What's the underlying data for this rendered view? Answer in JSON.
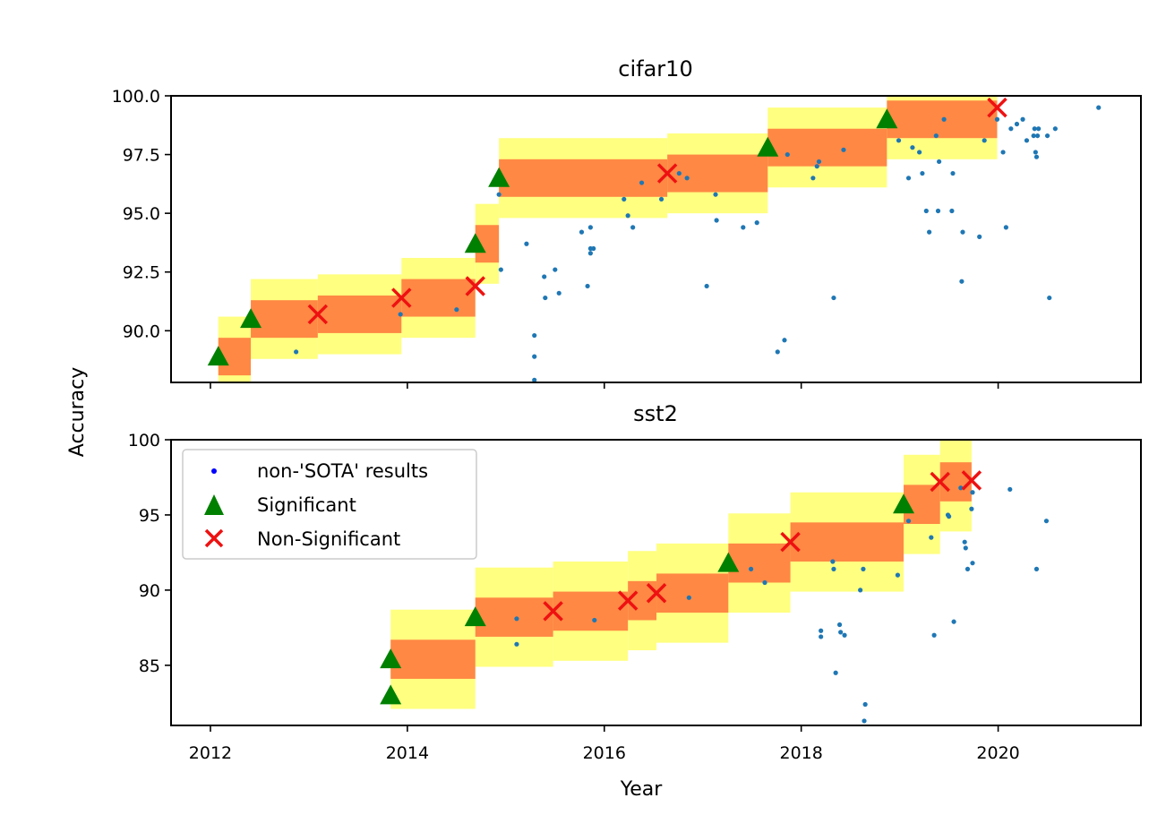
{
  "figure": {
    "xlabel": "Year",
    "ylabel": "Accuracy",
    "x_ticks": [
      2012,
      2014,
      2016,
      2018,
      2020
    ],
    "x_tick_labels": [
      "2012",
      "2014",
      "2016",
      "2018",
      "2020"
    ],
    "colors": {
      "band_outer": "#ffff80",
      "band_inner": "#ff8844",
      "significant": "#008000",
      "non_significant": "#ee1111",
      "non_sota": "#1f77b4",
      "legend_dot": "#0000ff"
    }
  },
  "legend": {
    "placement": "upper-left of sst2 panel",
    "items": [
      {
        "label": "non-'SOTA' results",
        "marker": "dot"
      },
      {
        "label": "Significant",
        "marker": "triangle"
      },
      {
        "label": "Non-Significant",
        "marker": "x"
      }
    ]
  },
  "chart_data": [
    {
      "type": "scatter",
      "title": "cifar10",
      "xlabel": "",
      "ylabel": "Accuracy",
      "xlim": [
        2011.6,
        2021.45
      ],
      "ylim": [
        87.8,
        100.0
      ],
      "y_ticks": [
        90.0,
        92.5,
        95.0,
        97.5,
        100.0
      ],
      "y_tick_labels": [
        "90.0",
        "92.5",
        "95.0",
        "97.5",
        "100.0"
      ],
      "bands": [
        {
          "x0": 2012.08,
          "x1": 2012.41,
          "y": 88.9,
          "inner": 0.8,
          "outer": 1.7
        },
        {
          "x0": 2012.41,
          "x1": 2013.09,
          "y": 90.5,
          "inner": 0.8,
          "outer": 1.7
        },
        {
          "x0": 2013.09,
          "x1": 2013.94,
          "y": 90.7,
          "inner": 0.8,
          "outer": 1.7
        },
        {
          "x0": 2013.94,
          "x1": 2014.69,
          "y": 91.4,
          "inner": 0.8,
          "outer": 1.7
        },
        {
          "x0": 2014.69,
          "x1": 2014.93,
          "y": 93.7,
          "inner": 0.8,
          "outer": 1.7
        },
        {
          "x0": 2014.93,
          "x1": 2016.64,
          "y": 96.5,
          "inner": 0.8,
          "outer": 1.7
        },
        {
          "x0": 2016.64,
          "x1": 2017.66,
          "y": 96.7,
          "inner": 0.8,
          "outer": 1.7
        },
        {
          "x0": 2017.66,
          "x1": 2018.87,
          "y": 97.8,
          "inner": 0.8,
          "outer": 1.7
        },
        {
          "x0": 2018.87,
          "x1": 2019.99,
          "y": 99.0,
          "inner": 0.8,
          "outer": 1.7
        }
      ],
      "significant": [
        {
          "x": 2012.08,
          "y": 88.9
        },
        {
          "x": 2012.41,
          "y": 90.5
        },
        {
          "x": 2014.69,
          "y": 93.7
        },
        {
          "x": 2014.93,
          "y": 96.5
        },
        {
          "x": 2017.66,
          "y": 97.8
        },
        {
          "x": 2018.87,
          "y": 99.0
        }
      ],
      "non_significant": [
        {
          "x": 2013.09,
          "y": 90.7
        },
        {
          "x": 2013.94,
          "y": 91.4
        },
        {
          "x": 2014.69,
          "y": 91.9
        },
        {
          "x": 2016.64,
          "y": 96.7
        },
        {
          "x": 2019.99,
          "y": 99.5
        }
      ],
      "non_sota": [
        [
          2012.87,
          89.1
        ],
        [
          2013.93,
          90.7
        ],
        [
          2014.5,
          90.9
        ],
        [
          2014.93,
          95.8
        ],
        [
          2014.95,
          92.6
        ],
        [
          2015.21,
          93.7
        ],
        [
          2015.29,
          89.8
        ],
        [
          2015.29,
          88.9
        ],
        [
          2015.29,
          87.9
        ],
        [
          2015.39,
          92.3
        ],
        [
          2015.4,
          91.4
        ],
        [
          2015.5,
          92.6
        ],
        [
          2015.54,
          91.6
        ],
        [
          2015.77,
          94.2
        ],
        [
          2015.83,
          91.9
        ],
        [
          2015.86,
          94.4
        ],
        [
          2015.86,
          93.5
        ],
        [
          2015.86,
          93.3
        ],
        [
          2015.89,
          93.5
        ],
        [
          2016.2,
          95.6
        ],
        [
          2016.24,
          94.9
        ],
        [
          2016.29,
          94.4
        ],
        [
          2016.38,
          96.3
        ],
        [
          2016.58,
          95.6
        ],
        [
          2016.76,
          96.7
        ],
        [
          2016.84,
          96.5
        ],
        [
          2017.04,
          91.9
        ],
        [
          2017.13,
          95.8
        ],
        [
          2017.14,
          94.7
        ],
        [
          2017.41,
          94.4
        ],
        [
          2017.55,
          94.6
        ],
        [
          2017.76,
          89.1
        ],
        [
          2017.83,
          89.6
        ],
        [
          2017.86,
          97.5
        ],
        [
          2018.12,
          96.5
        ],
        [
          2018.16,
          97.0
        ],
        [
          2018.18,
          97.2
        ],
        [
          2018.33,
          91.4
        ],
        [
          2018.43,
          97.7
        ],
        [
          2018.99,
          98.1
        ],
        [
          2019.09,
          96.5
        ],
        [
          2019.13,
          97.8
        ],
        [
          2019.2,
          97.6
        ],
        [
          2019.23,
          96.7
        ],
        [
          2019.27,
          95.1
        ],
        [
          2019.3,
          94.2
        ],
        [
          2019.37,
          98.3
        ],
        [
          2019.39,
          95.1
        ],
        [
          2019.4,
          97.2
        ],
        [
          2019.45,
          99.0
        ],
        [
          2019.53,
          95.1
        ],
        [
          2019.54,
          96.7
        ],
        [
          2019.63,
          92.1
        ],
        [
          2019.64,
          94.2
        ],
        [
          2019.81,
          94.0
        ],
        [
          2019.86,
          98.1
        ],
        [
          2019.99,
          99.0
        ],
        [
          2020.05,
          97.6
        ],
        [
          2020.08,
          94.4
        ],
        [
          2020.13,
          98.6
        ],
        [
          2020.19,
          98.8
        ],
        [
          2020.25,
          99.0
        ],
        [
          2020.29,
          98.1
        ],
        [
          2020.36,
          98.3
        ],
        [
          2020.37,
          98.6
        ],
        [
          2020.38,
          97.6
        ],
        [
          2020.39,
          97.4
        ],
        [
          2020.4,
          98.3
        ],
        [
          2020.41,
          98.6
        ],
        [
          2020.5,
          98.3
        ],
        [
          2020.52,
          91.4
        ],
        [
          2020.58,
          98.6
        ],
        [
          2021.02,
          99.5
        ]
      ]
    },
    {
      "type": "scatter",
      "title": "sst2",
      "xlabel": "Year",
      "ylabel": "Accuracy",
      "xlim": [
        2011.6,
        2021.45
      ],
      "ylim": [
        81.0,
        100.0
      ],
      "y_ticks": [
        85,
        90,
        95,
        100
      ],
      "y_tick_labels": [
        "85",
        "90",
        "95",
        "100"
      ],
      "bands": [
        {
          "x0": 2013.83,
          "x1": 2014.69,
          "y": 85.4,
          "inner": 1.3,
          "outer": 3.3
        },
        {
          "x0": 2014.69,
          "x1": 2015.48,
          "y": 88.2,
          "inner": 1.3,
          "outer": 3.3
        },
        {
          "x0": 2015.48,
          "x1": 2016.24,
          "y": 88.6,
          "inner": 1.3,
          "outer": 3.3
        },
        {
          "x0": 2016.24,
          "x1": 2016.53,
          "y": 89.3,
          "inner": 1.3,
          "outer": 3.3
        },
        {
          "x0": 2016.53,
          "x1": 2017.26,
          "y": 89.8,
          "inner": 1.3,
          "outer": 3.3
        },
        {
          "x0": 2017.26,
          "x1": 2017.89,
          "y": 91.8,
          "inner": 1.3,
          "outer": 3.3
        },
        {
          "x0": 2017.89,
          "x1": 2019.04,
          "y": 93.2,
          "inner": 1.3,
          "outer": 3.3
        },
        {
          "x0": 2019.04,
          "x1": 2019.41,
          "y": 95.7,
          "inner": 1.3,
          "outer": 3.3
        },
        {
          "x0": 2019.41,
          "x1": 2019.73,
          "y": 97.2,
          "inner": 1.3,
          "outer": 3.3
        }
      ],
      "significant": [
        {
          "x": 2013.83,
          "y": 85.4
        },
        {
          "x": 2013.83,
          "y": 83.0
        },
        {
          "x": 2014.69,
          "y": 88.2
        },
        {
          "x": 2017.26,
          "y": 91.8
        },
        {
          "x": 2019.04,
          "y": 95.7
        }
      ],
      "non_significant": [
        {
          "x": 2015.48,
          "y": 88.6
        },
        {
          "x": 2016.24,
          "y": 89.3
        },
        {
          "x": 2016.53,
          "y": 89.8
        },
        {
          "x": 2017.89,
          "y": 93.2
        },
        {
          "x": 2019.41,
          "y": 97.2
        },
        {
          "x": 2019.73,
          "y": 97.3
        }
      ],
      "non_sota": [
        [
          2015.11,
          88.1
        ],
        [
          2015.11,
          86.4
        ],
        [
          2015.9,
          88.0
        ],
        [
          2016.86,
          89.5
        ],
        [
          2017.63,
          90.5
        ],
        [
          2017.49,
          91.4
        ],
        [
          2018.2,
          87.3
        ],
        [
          2018.2,
          86.9
        ],
        [
          2018.32,
          91.9
        ],
        [
          2018.33,
          91.4
        ],
        [
          2018.35,
          84.5
        ],
        [
          2018.39,
          87.7
        ],
        [
          2018.4,
          87.2
        ],
        [
          2018.44,
          87.0
        ],
        [
          2018.6,
          90.0
        ],
        [
          2018.63,
          91.4
        ],
        [
          2018.65,
          82.4
        ],
        [
          2018.64,
          81.3
        ],
        [
          2018.98,
          91.0
        ],
        [
          2019.09,
          94.6
        ],
        [
          2019.32,
          93.5
        ],
        [
          2019.35,
          87.0
        ],
        [
          2019.49,
          95.0
        ],
        [
          2019.5,
          94.9
        ],
        [
          2019.55,
          87.9
        ],
        [
          2019.62,
          96.8
        ],
        [
          2019.66,
          93.2
        ],
        [
          2019.67,
          92.8
        ],
        [
          2019.69,
          91.4
        ],
        [
          2019.73,
          95.4
        ],
        [
          2019.74,
          91.8
        ],
        [
          2019.74,
          96.5
        ],
        [
          2020.12,
          96.7
        ],
        [
          2020.39,
          91.4
        ],
        [
          2020.49,
          94.6
        ]
      ]
    }
  ]
}
